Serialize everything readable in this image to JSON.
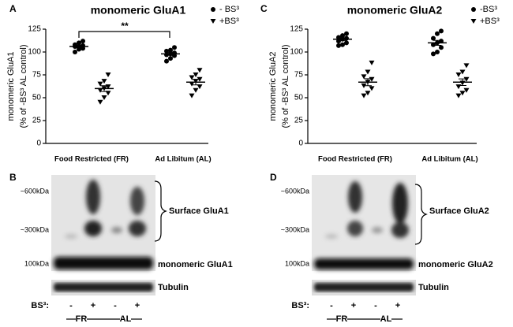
{
  "chart_data": [
    {
      "type": "dotplot",
      "panel": "A",
      "title": "monomeric GluA1",
      "ylabel": [
        "monomeric GluA1",
        "(% of -BS³ AL control)"
      ],
      "categories": [
        "Food Restricted (FR)",
        "Ad Libitum (AL)"
      ],
      "ylim": [
        0,
        125
      ],
      "yticks": [
        0,
        25,
        50,
        75,
        100,
        125
      ],
      "series": [
        {
          "name": "- BS³",
          "marker": "circle",
          "color": "#000000",
          "points": [
            [
              100,
              103,
              104,
              106,
              106,
              107,
              108,
              110,
              112
            ],
            [
              90,
              93,
              96,
              97,
              98,
              99,
              101,
              102,
              105
            ]
          ],
          "mean": [
            106,
            98
          ],
          "sem": [
            1.3,
            1.5
          ]
        },
        {
          "name": "+BS³",
          "marker": "triangle",
          "color": "#000000",
          "points": [
            [
              45,
              50,
              55,
              58,
              60,
              62,
              65,
              68,
              75
            ],
            [
              52,
              58,
              62,
              65,
              68,
              70,
              72,
              75,
              80
            ]
          ],
          "mean": [
            60,
            67
          ],
          "sem": [
            3.2,
            3.0
          ]
        }
      ],
      "annotation": "**"
    },
    {
      "type": "dotplot",
      "panel": "C",
      "title": "monomeric GluA2",
      "ylabel": [
        "monomeric GluA2",
        "(% of -BS³ AL control)"
      ],
      "categories": [
        "Food Restricted (FR)",
        "Ad Libitum (AL)"
      ],
      "ylim": [
        0,
        125
      ],
      "yticks": [
        0,
        25,
        50,
        75,
        100,
        125
      ],
      "series": [
        {
          "name": "-BS³",
          "marker": "circle",
          "color": "#000000",
          "points": [
            [
              107,
              108,
              110,
              112,
              114,
              115,
              116,
              118,
              120
            ],
            [
              98,
              100,
              105,
              108,
              110,
              112,
              115,
              120,
              123
            ]
          ],
          "mean": [
            114,
            110
          ],
          "sem": [
            1.4,
            2.7
          ]
        },
        {
          "name": "+BS³",
          "marker": "triangle",
          "color": "#000000",
          "points": [
            [
              52,
              55,
              60,
              63,
              67,
              70,
              73,
              78,
              88
            ],
            [
              52,
              55,
              58,
              62,
              66,
              70,
              75,
              78,
              85
            ]
          ],
          "mean": [
            67,
            67
          ],
          "sem": [
            3.8,
            3.6
          ]
        }
      ]
    }
  ],
  "blots": [
    {
      "panel": "B",
      "mw": [
        "~600kDa",
        "~300kDa",
        "100kDa"
      ],
      "surface": "Surface GluA1",
      "monomeric": "monomeric GluA1",
      "loading": "Tubulin",
      "bs_label": "BS³:",
      "lanes": [
        "-",
        "+",
        "-",
        "+"
      ],
      "groups": [
        "FR",
        "AL"
      ]
    },
    {
      "panel": "D",
      "mw": [
        "~600kDa",
        "~300kDa",
        "100kDa"
      ],
      "surface": "Surface GluA2",
      "monomeric": "monomeric GluA2",
      "loading": "Tubulin",
      "bs_label": "BS³:",
      "lanes": [
        "-",
        "+",
        "-",
        "+"
      ],
      "groups": [
        "FR",
        "AL"
      ]
    }
  ]
}
